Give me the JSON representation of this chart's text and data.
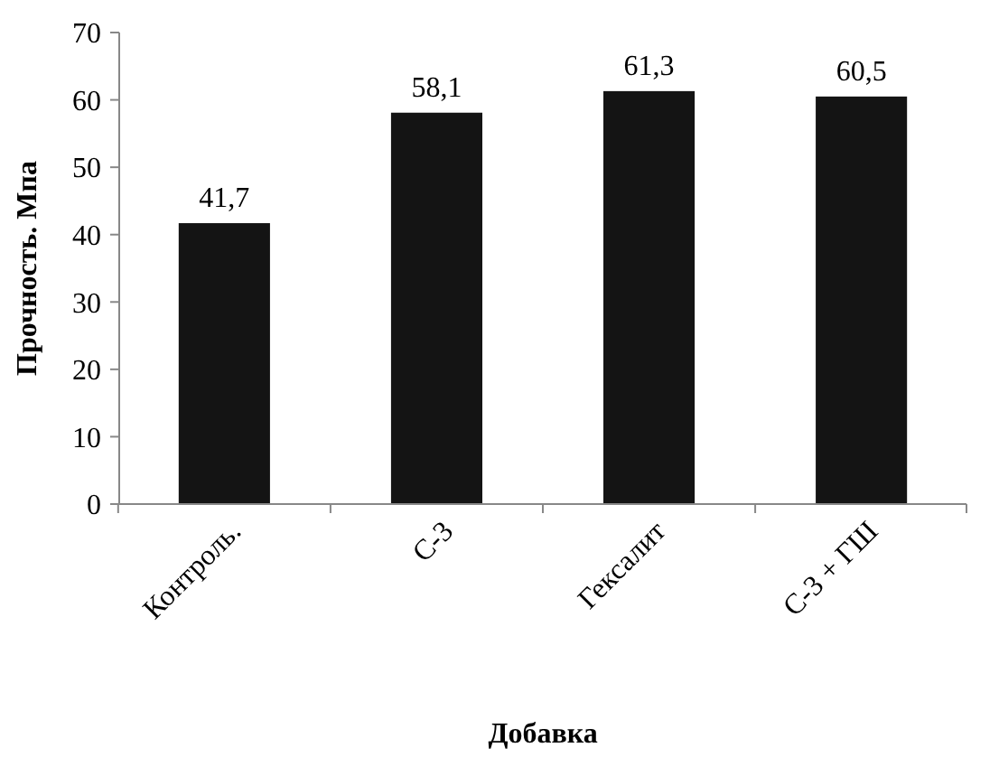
{
  "chart_data": {
    "type": "bar",
    "xlabel": "Добавка",
    "ylabel": "Прочность. Мпа",
    "categories": [
      "Контроль.",
      "С-3",
      "Гексалит",
      "С-3 + ГШ"
    ],
    "values": [
      41.7,
      58.1,
      61.3,
      60.5
    ],
    "value_labels": [
      "41,7",
      "58,1",
      "61,3",
      "60,5"
    ],
    "color": "#141414",
    "ylim": [
      0,
      70
    ],
    "yticks": [
      0,
      10,
      20,
      30,
      40,
      50,
      60,
      70
    ],
    "grid": false
  }
}
